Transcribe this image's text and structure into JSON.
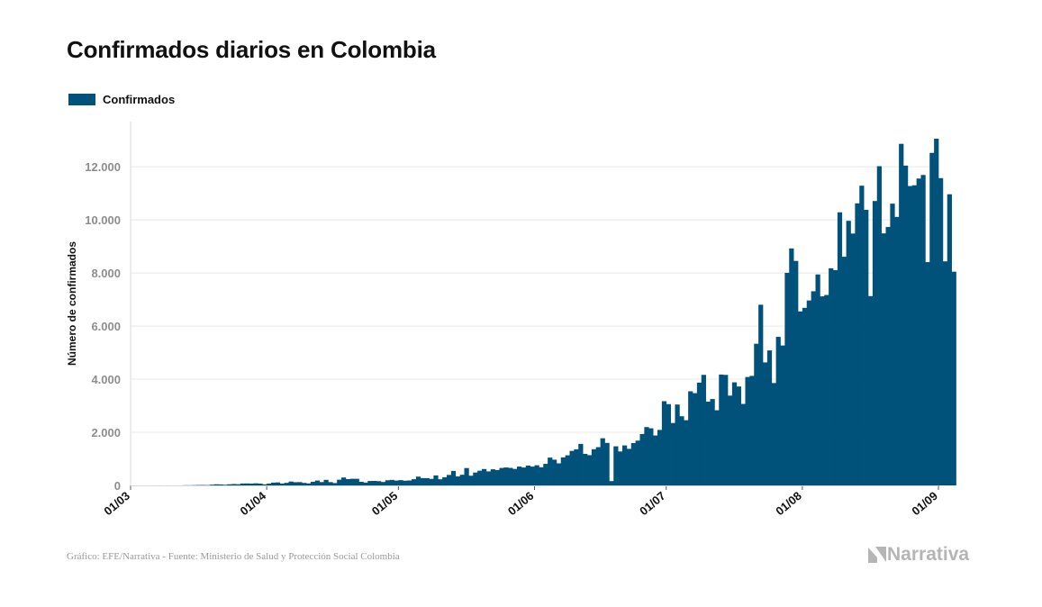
{
  "page": {
    "source_text": "Gráfico: EFE/Narrativa - Fuente: Ministerio de Salud y Protección Social Colombia",
    "brand_text": "Narrativa"
  },
  "colors": {
    "bar": "#00527a",
    "grid": "#e8e8e8",
    "brand": "#b5b5b5"
  },
  "chart_data": {
    "type": "bar",
    "title": "Confirmados diarios en Colombia",
    "ylabel": "Número de confirmados",
    "xlabel": "",
    "ylim": [
      0,
      13700
    ],
    "yticks": [
      0,
      2000,
      4000,
      6000,
      8000,
      10000,
      12000
    ],
    "ytick_labels": [
      "0",
      "2.000",
      "4.000",
      "6.000",
      "8.000",
      "10.000",
      "12.000"
    ],
    "x_start": "2020-03-01",
    "x_end": "2020-09-01",
    "xticks": [
      "2020-03-01",
      "2020-04-01",
      "2020-05-01",
      "2020-06-01",
      "2020-07-01",
      "2020-08-01",
      "2020-09-01"
    ],
    "xtick_labels": [
      "01/03",
      "01/04",
      "01/05",
      "01/06",
      "01/07",
      "01/08",
      "01/09"
    ],
    "grid": true,
    "legend_position": "top-left",
    "series": [
      {
        "name": "Confirmados",
        "start_date": "2020-03-07",
        "values": [
          1,
          0,
          1,
          0,
          0,
          1,
          6,
          6,
          10,
          14,
          16,
          12,
          27,
          42,
          38,
          25,
          43,
          52,
          45,
          72,
          74,
          68,
          79,
          68,
          41,
          68,
          105,
          112,
          71,
          97,
          146,
          121,
          124,
          95,
          75,
          135,
          184,
          126,
          210,
          123,
          89,
          215,
          298,
          237,
          250,
          250,
          138,
          108,
          167,
          170,
          161,
          130,
          195,
          209,
          183,
          199,
          178,
          186,
          234,
          331,
          275,
          274,
          246,
          377,
          232,
          309,
          395,
          546,
          339,
          401,
          654,
          365,
          486,
          554,
          617,
          528,
          608,
          580,
          658,
          676,
          660,
          621,
          710,
          675,
          747,
          709,
          759,
          685,
          812,
          1048,
          970,
          831,
          1057,
          1134,
          1300,
          1361,
          1564,
          1189,
          1139,
          1363,
          1441,
          1776,
          1601,
          163,
          1473,
          1278,
          1506,
          1378,
          1595,
          1687,
          1937,
          2197,
          2151,
          1880,
          2090,
          3171,
          3061,
          2351,
          3046,
          2604,
          2455,
          3544,
          3474,
          3871,
          4163,
          3156,
          3252,
          2830,
          4175,
          4162,
          3381,
          3882,
          3725,
          3069,
          4082,
          4124,
          5335,
          6803,
          4631,
          5083,
          3855,
          5594,
          5269,
          8006,
          8924,
          8453,
          6553,
          6687,
          6964,
          7311,
          7944,
          7119,
          7171,
          8176,
          8105,
          10284,
          8611,
          9963,
          9484,
          10622,
          11286,
          10376,
          7129,
          10709,
          12020,
          9490,
          9730,
          10610,
          10111,
          12862,
          12043,
          11273,
          11301,
          11555,
          11690,
          8408,
          12522,
          13056,
          11571,
          8438,
          10963,
          8048
        ]
      }
    ]
  }
}
